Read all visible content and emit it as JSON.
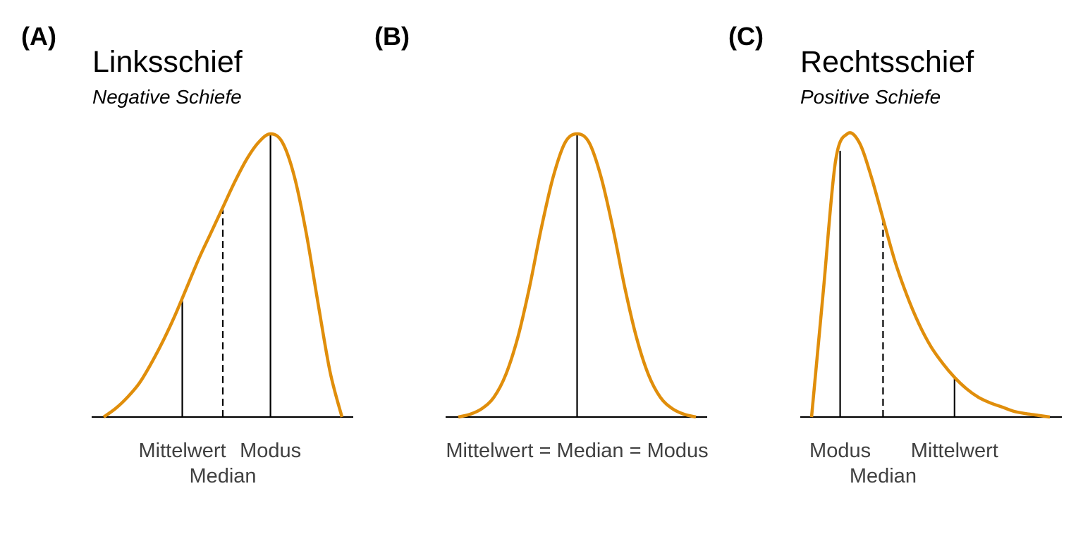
{
  "colors": {
    "curve": "#E08E0B",
    "marker": "#000000",
    "axis": "#000000",
    "label": "#404040"
  },
  "chart_data": [
    {
      "type": "line",
      "tag": "(A)",
      "title": "Linksschief",
      "subtitle": "Negative Schiefe",
      "curve": {
        "x": [
          0.0,
          0.05,
          0.1,
          0.15,
          0.2,
          0.25,
          0.3,
          0.35,
          0.4,
          0.45,
          0.5,
          0.55,
          0.6,
          0.65,
          0.7,
          0.75,
          0.8,
          0.85,
          0.9,
          0.95,
          1.0
        ],
        "y": [
          0.0,
          0.03,
          0.07,
          0.12,
          0.19,
          0.27,
          0.36,
          0.46,
          0.56,
          0.65,
          0.74,
          0.83,
          0.91,
          0.97,
          1.0,
          0.97,
          0.85,
          0.65,
          0.4,
          0.16,
          0.0
        ]
      },
      "markers": [
        {
          "x": 0.33,
          "style": "solid"
        },
        {
          "x": 0.5,
          "style": "dashed"
        },
        {
          "x": 0.7,
          "style": "solid"
        }
      ],
      "labels": [
        {
          "text": "Mittelwert",
          "x": 0.33,
          "row": 1
        },
        {
          "text": "Modus",
          "x": 0.7,
          "row": 1
        },
        {
          "text": "Median",
          "x": 0.5,
          "row": 2
        }
      ]
    },
    {
      "type": "line",
      "tag": "(B)",
      "title": "",
      "subtitle": "",
      "curve": {
        "x": [
          0.0,
          0.05,
          0.1,
          0.15,
          0.2,
          0.25,
          0.3,
          0.35,
          0.4,
          0.45,
          0.5,
          0.55,
          0.6,
          0.65,
          0.7,
          0.75,
          0.8,
          0.85,
          0.9,
          0.95,
          1.0
        ],
        "y": [
          0.0,
          0.01,
          0.03,
          0.07,
          0.15,
          0.28,
          0.46,
          0.67,
          0.85,
          0.97,
          1.0,
          0.97,
          0.85,
          0.67,
          0.46,
          0.28,
          0.15,
          0.07,
          0.03,
          0.01,
          0.0
        ]
      },
      "markers": [
        {
          "x": 0.5,
          "style": "solid"
        }
      ],
      "labels": [
        {
          "text": "Mittelwert = Median = Modus",
          "x": 0.5,
          "row": 1
        }
      ]
    },
    {
      "type": "line",
      "tag": "(C)",
      "title": "Rechtsschief",
      "subtitle": "Positive Schiefe",
      "curve": {
        "x": [
          0.0,
          0.05,
          0.1,
          0.15,
          0.2,
          0.25,
          0.3,
          0.35,
          0.4,
          0.45,
          0.5,
          0.55,
          0.6,
          0.65,
          0.7,
          0.75,
          0.8,
          0.85,
          0.9,
          0.95,
          1.0
        ],
        "y": [
          0.0,
          0.45,
          0.9,
          1.0,
          0.97,
          0.85,
          0.7,
          0.55,
          0.43,
          0.33,
          0.25,
          0.19,
          0.14,
          0.1,
          0.07,
          0.05,
          0.035,
          0.02,
          0.012,
          0.006,
          0.0
        ]
      },
      "markers": [
        {
          "x": 0.12,
          "style": "solid"
        },
        {
          "x": 0.3,
          "style": "dashed"
        },
        {
          "x": 0.6,
          "style": "solid"
        }
      ],
      "labels": [
        {
          "text": "Modus",
          "x": 0.12,
          "row": 1
        },
        {
          "text": "Mittelwert",
          "x": 0.6,
          "row": 1
        },
        {
          "text": "Median",
          "x": 0.3,
          "row": 2
        }
      ]
    }
  ]
}
